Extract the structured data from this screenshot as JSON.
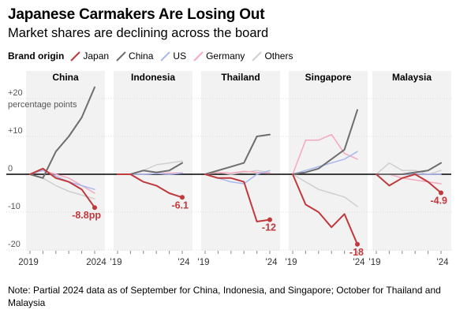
{
  "title": "Japanese Carmakers Are Losing Out",
  "subtitle": "Market shares are declining across the board",
  "note": "Note: Partial 2024 data as of September for China, Indonesia, and Singapore; October for Thailand and Malaysia",
  "legend": {
    "title": "Brand origin",
    "items": [
      {
        "name": "Japan",
        "color": "#c0393c"
      },
      {
        "name": "China",
        "color": "#6e6e6e"
      },
      {
        "name": "US",
        "color": "#a9b9f0"
      },
      {
        "name": "Germany",
        "color": "#f5a8bd"
      },
      {
        "name": "Others",
        "color": "#cfcfcf"
      }
    ]
  },
  "chart_data": {
    "type": "line",
    "x": [
      2019,
      2020,
      2021,
      2022,
      2023,
      2024
    ],
    "y_unit": "percentage points",
    "ylim": [
      -22,
      25
    ],
    "y_ticks": [
      {
        "value": 20,
        "label": "+20"
      },
      {
        "value": 10,
        "label": "+10"
      },
      {
        "value": 0,
        "label": "0"
      },
      {
        "value": -10,
        "label": "-10"
      },
      {
        "value": -20,
        "label": "-20"
      }
    ],
    "y_unit_label": "percentage points",
    "grid": true,
    "legend_position": "top-left",
    "panels": [
      {
        "name": "China",
        "x_tick_labels": [
          "2019",
          "2024"
        ],
        "end_label": "-8.8pp",
        "series": [
          {
            "name": "Japan",
            "values": [
              0,
              1.5,
              -1,
              -2,
              -4,
              -8.8
            ]
          },
          {
            "name": "China",
            "values": [
              0,
              -1,
              6,
              10,
              15,
              23
            ]
          },
          {
            "name": "US",
            "values": [
              0,
              1,
              -0.5,
              -2,
              -3,
              -4
            ]
          },
          {
            "name": "Germany",
            "values": [
              0,
              1,
              0,
              -1,
              -3,
              -5
            ]
          },
          {
            "name": "Others",
            "values": [
              0,
              -1,
              -3,
              -4.5,
              -5.5,
              -6.5
            ]
          }
        ]
      },
      {
        "name": "Indonesia",
        "x_tick_labels": [
          "'19",
          "'24"
        ],
        "end_label": "-6.1",
        "series": [
          {
            "name": "Japan",
            "values": [
              0,
              0,
              -2,
              -3,
              -5,
              -6.1
            ]
          },
          {
            "name": "China",
            "values": [
              0,
              0,
              1,
              0.5,
              1,
              3
            ]
          },
          {
            "name": "US",
            "values": [
              0,
              0,
              0,
              0.2,
              0,
              0.3
            ]
          },
          {
            "name": "Germany",
            "values": [
              0,
              0,
              0,
              0.2,
              0.3,
              0.4
            ]
          },
          {
            "name": "Others",
            "values": [
              0,
              0,
              1,
              2.5,
              3,
              3.5
            ]
          }
        ]
      },
      {
        "name": "Thailand",
        "x_tick_labels": [
          "'19",
          "'24"
        ],
        "end_label": "-12",
        "series": [
          {
            "name": "Japan",
            "values": [
              0,
              -1,
              -1,
              -2,
              -12.5,
              -12
            ]
          },
          {
            "name": "China",
            "values": [
              0,
              1,
              2,
              3,
              10,
              10.5
            ]
          },
          {
            "name": "US",
            "values": [
              0,
              -1,
              -2,
              -2.5,
              0,
              1
            ]
          },
          {
            "name": "Germany",
            "values": [
              0,
              0.5,
              0.3,
              0.8,
              0.5,
              0.3
            ]
          },
          {
            "name": "Others",
            "values": [
              0,
              0.5,
              0,
              0.5,
              1,
              0.5
            ]
          }
        ]
      },
      {
        "name": "Singapore",
        "x_tick_labels": [
          "'19",
          "'24"
        ],
        "end_label": "-18",
        "series": [
          {
            "name": "Japan",
            "values": [
              0,
              -8,
              -10,
              -14,
              -10.5,
              -18.5
            ]
          },
          {
            "name": "China",
            "values": [
              0,
              0.5,
              1.5,
              4,
              6.5,
              17
            ]
          },
          {
            "name": "US",
            "values": [
              0,
              1,
              2,
              3,
              4,
              6
            ]
          },
          {
            "name": "Germany",
            "values": [
              0,
              9,
              9,
              10.5,
              5.5,
              4
            ]
          },
          {
            "name": "Others",
            "values": [
              0,
              -2,
              -4,
              -5,
              -6,
              -8.5
            ]
          }
        ]
      },
      {
        "name": "Malaysia",
        "x_tick_labels": [
          "'19",
          "'24"
        ],
        "end_label": "-4.9",
        "series": [
          {
            "name": "Japan",
            "values": [
              0,
              -3,
              -1,
              0,
              -2,
              -4.9
            ]
          },
          {
            "name": "China",
            "values": [
              0,
              0,
              0,
              0.5,
              1,
              3
            ]
          },
          {
            "name": "US",
            "values": [
              0,
              0,
              0,
              0,
              0,
              0
            ]
          },
          {
            "name": "Germany",
            "values": [
              0,
              0,
              -1,
              -1.5,
              -2,
              -2.5
            ]
          },
          {
            "name": "Others",
            "values": [
              0,
              3,
              1,
              1,
              0,
              1
            ]
          }
        ]
      }
    ]
  }
}
